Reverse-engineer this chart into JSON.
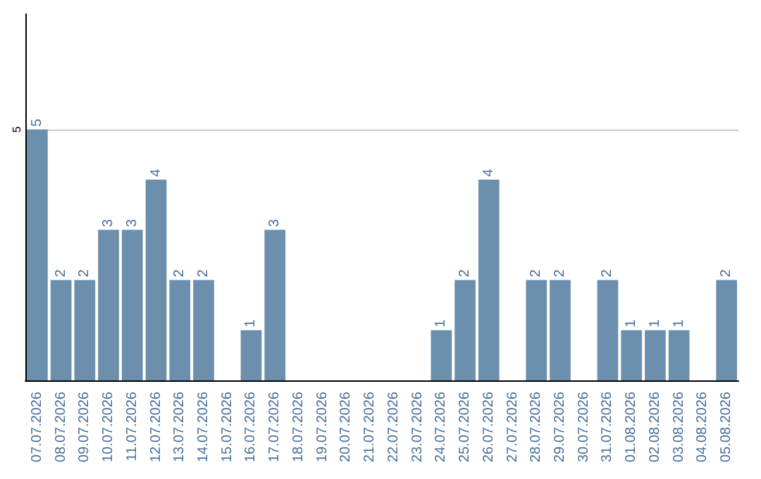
{
  "chart_data": {
    "type": "bar",
    "categories": [
      "07.07.2026",
      "08.07.2026",
      "09.07.2026",
      "10.07.2026",
      "11.07.2026",
      "12.07.2026",
      "13.07.2026",
      "14.07.2026",
      "15.07.2026",
      "16.07.2026",
      "17.07.2026",
      "18.07.2026",
      "19.07.2026",
      "20.07.2026",
      "21.07.2026",
      "22.07.2026",
      "23.07.2026",
      "24.07.2026",
      "25.07.2026",
      "26.07.2026",
      "27.07.2026",
      "28.07.2026",
      "29.07.2026",
      "30.07.2026",
      "31.07.2026",
      "01.08.2026",
      "02.08.2026",
      "03.08.2026",
      "04.08.2026",
      "05.08.2026"
    ],
    "values": [
      5,
      2,
      2,
      3,
      3,
      4,
      2,
      2,
      0,
      1,
      3,
      0,
      0,
      0,
      0,
      0,
      0,
      1,
      2,
      4,
      0,
      2,
      2,
      0,
      2,
      1,
      1,
      1,
      0,
      2
    ],
    "value_labels": [
      "5",
      "2",
      "2",
      "3",
      "3",
      "4",
      "2",
      "2",
      null,
      "1",
      "3",
      null,
      null,
      null,
      null,
      null,
      null,
      "1",
      "2",
      "4",
      null,
      "2",
      "2",
      null,
      "2",
      "1",
      "1",
      "1",
      null,
      "2"
    ],
    "color": "#6d8fae",
    "ylim": [
      0,
      7.3
    ],
    "yticks": [
      5
    ],
    "grid": "y"
  }
}
